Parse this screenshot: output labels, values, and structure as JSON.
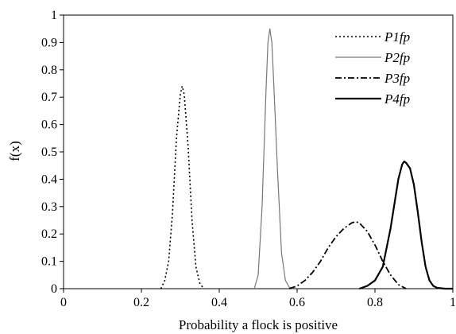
{
  "chart_data": {
    "type": "line",
    "title": "",
    "xlabel": "Probability a flock is positive",
    "ylabel": "f(x)",
    "xlim": [
      0,
      1
    ],
    "ylim": [
      0,
      1
    ],
    "x_ticks": [
      "0",
      "0.2",
      "0.4",
      "0.6",
      "0.8",
      "1"
    ],
    "y_ticks": [
      "0",
      "0.1",
      "0.2",
      "0.3",
      "0.4",
      "0.5",
      "0.6",
      "0.7",
      "0.8",
      "0.9",
      "1"
    ],
    "grid": false,
    "legend_position": "top-right",
    "series": [
      {
        "name": "P1fp",
        "style": "dotted",
        "color": "#000000",
        "x": [
          0.25,
          0.26,
          0.27,
          0.28,
          0.29,
          0.3,
          0.305,
          0.31,
          0.32,
          0.33,
          0.34,
          0.35,
          0.36
        ],
        "y": [
          0.0,
          0.03,
          0.1,
          0.28,
          0.55,
          0.71,
          0.74,
          0.71,
          0.52,
          0.25,
          0.08,
          0.02,
          0.0
        ]
      },
      {
        "name": "P2fp",
        "style": "solid-thin",
        "color": "#777777",
        "x": [
          0.49,
          0.5,
          0.51,
          0.52,
          0.525,
          0.53,
          0.535,
          0.54,
          0.55,
          0.56,
          0.57,
          0.58,
          0.59
        ],
        "y": [
          0.0,
          0.05,
          0.3,
          0.72,
          0.9,
          0.95,
          0.9,
          0.75,
          0.42,
          0.13,
          0.03,
          0.005,
          0.0
        ]
      },
      {
        "name": "P3fp",
        "style": "dash-dot",
        "color": "#000000",
        "x": [
          0.58,
          0.6,
          0.62,
          0.64,
          0.66,
          0.68,
          0.7,
          0.72,
          0.74,
          0.75,
          0.76,
          0.78,
          0.8,
          0.82,
          0.84,
          0.86,
          0.88
        ],
        "y": [
          0.0,
          0.01,
          0.03,
          0.06,
          0.1,
          0.15,
          0.19,
          0.22,
          0.24,
          0.245,
          0.24,
          0.21,
          0.16,
          0.1,
          0.05,
          0.015,
          0.0
        ]
      },
      {
        "name": "P4fp",
        "style": "solid",
        "color": "#000000",
        "x": [
          0.76,
          0.78,
          0.8,
          0.82,
          0.84,
          0.86,
          0.87,
          0.875,
          0.88,
          0.89,
          0.9,
          0.91,
          0.92,
          0.93,
          0.94,
          0.95,
          0.96,
          0.98,
          1.0
        ],
        "y": [
          0.0,
          0.01,
          0.03,
          0.08,
          0.22,
          0.4,
          0.455,
          0.465,
          0.46,
          0.44,
          0.38,
          0.28,
          0.17,
          0.08,
          0.03,
          0.01,
          0.003,
          0.0,
          0.0
        ]
      }
    ]
  }
}
